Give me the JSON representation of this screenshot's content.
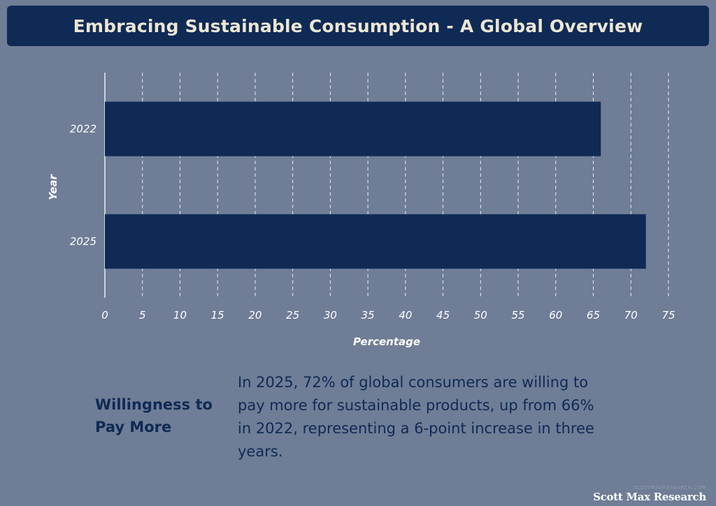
{
  "title": "Embracing Sustainable Consumption - A Global Overview",
  "chart_data": {
    "type": "bar",
    "orientation": "horizontal",
    "categories": [
      "2022",
      "2025"
    ],
    "values": [
      66,
      72
    ],
    "xlabel": "Percentage",
    "ylabel": "Year",
    "xlim": [
      0,
      75
    ],
    "xticks": [
      0,
      5,
      10,
      15,
      20,
      25,
      30,
      35,
      40,
      45,
      50,
      55,
      60,
      65,
      70,
      75
    ],
    "grid": true,
    "colors": {
      "bar": "#0f2a55",
      "grid": "#e8ecf3",
      "text": "#ffffff"
    }
  },
  "info": {
    "heading": "Willingness to Pay More",
    "body": "In 2025, 72% of global consumers are willing to pay more for sustainable products, up from 66% in 2022, representing a 6-point increase in three years."
  },
  "watermark": {
    "small": "SCOTTMAXRESEARCH.COM",
    "brand": "Scott Max Research"
  }
}
